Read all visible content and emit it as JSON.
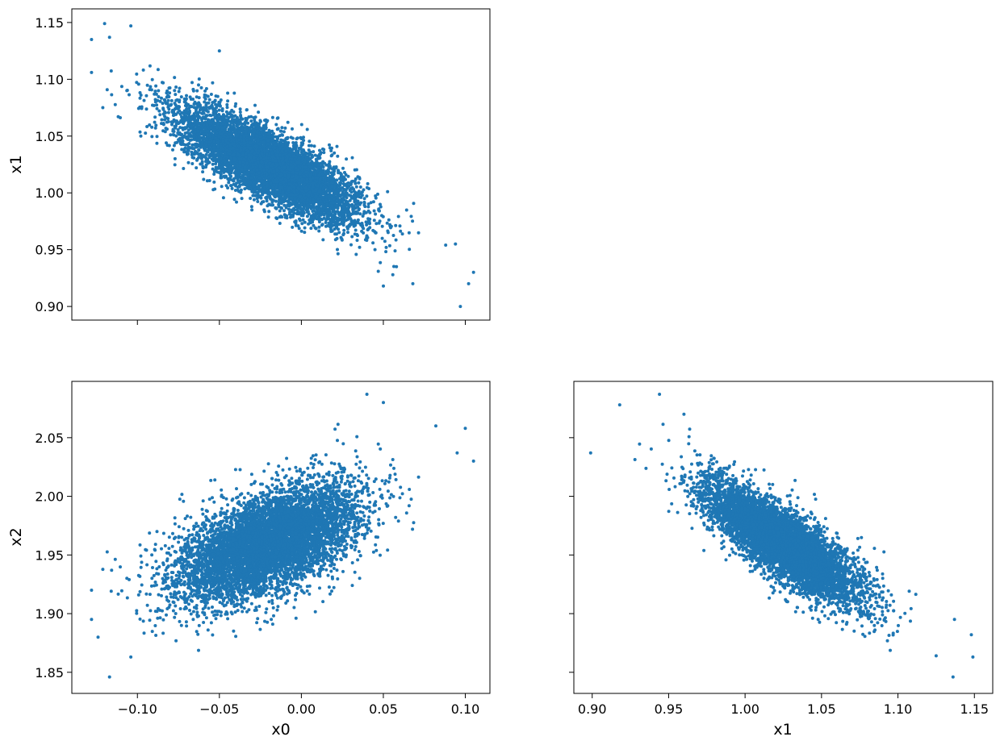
{
  "chart_data": {
    "type": "scatter",
    "layout": "pairwise corner plot (lower triangle)",
    "marker_color": "#1f77b4",
    "grid": false,
    "estimated_distribution": {
      "n_points_per_panel": "dense (~10000)",
      "x0": {
        "mean": -0.02,
        "std": 0.028
      },
      "x1": {
        "mean": 1.025,
        "std": 0.025
      },
      "x2": {
        "mean": 1.96,
        "std": 0.025
      },
      "corr_x0_x1": -0.8,
      "corr_x0_x2": 0.55,
      "corr_x1_x2": -0.82
    },
    "panels": [
      {
        "id": "x0-vs-x1",
        "xvar": "x0",
        "yvar": "x1",
        "xlabel": "",
        "ylabel": "x1",
        "xlim": [
          -0.14,
          0.115
        ],
        "ylim": [
          0.888,
          1.162
        ],
        "xticks": [
          -0.1,
          -0.05,
          0.0,
          0.05,
          0.1
        ],
        "xtick_labels": [],
        "yticks": [
          0.9,
          0.95,
          1.0,
          1.05,
          1.1,
          1.15
        ],
        "ytick_labels": [
          "0.90",
          "0.95",
          "1.00",
          "1.05",
          "1.10",
          "1.15"
        ],
        "outliers": [
          [
            -0.128,
            1.135
          ],
          [
            -0.12,
            1.149
          ],
          [
            -0.104,
            1.147
          ],
          [
            -0.117,
            1.137
          ],
          [
            -0.128,
            1.106
          ],
          [
            -0.05,
            1.125
          ],
          [
            0.068,
            0.92
          ],
          [
            0.088,
            0.954
          ],
          [
            0.094,
            0.955
          ],
          [
            0.097,
            0.9
          ],
          [
            0.105,
            0.93
          ],
          [
            0.102,
            0.92
          ],
          [
            0.058,
            0.935
          ],
          [
            0.05,
            0.918
          ]
        ]
      },
      {
        "id": "x0-vs-x2",
        "xvar": "x0",
        "yvar": "x2",
        "xlabel": "x0",
        "ylabel": "x2",
        "xlim": [
          -0.14,
          0.115
        ],
        "ylim": [
          1.832,
          2.098
        ],
        "xticks": [
          -0.1,
          -0.05,
          0.0,
          0.05,
          0.1
        ],
        "xtick_labels": [
          "−0.10",
          "−0.05",
          "0.00",
          "0.05",
          "0.10"
        ],
        "yticks": [
          1.85,
          1.9,
          1.95,
          2.0,
          2.05
        ],
        "ytick_labels": [
          "1.85",
          "1.90",
          "1.95",
          "2.00",
          "2.05"
        ],
        "outliers": [
          [
            -0.117,
            1.846
          ],
          [
            -0.128,
            1.92
          ],
          [
            -0.128,
            1.895
          ],
          [
            -0.124,
            1.88
          ],
          [
            -0.104,
            1.863
          ],
          [
            0.1,
            2.058
          ],
          [
            0.105,
            2.03
          ],
          [
            0.04,
            2.087
          ],
          [
            0.05,
            2.08
          ],
          [
            0.095,
            2.037
          ],
          [
            0.082,
            2.06
          ]
        ]
      },
      {
        "id": "x1-vs-x2",
        "xvar": "x1",
        "yvar": "x2",
        "xlabel": "x1",
        "ylabel": "",
        "xlim": [
          0.888,
          1.162
        ],
        "ylim": [
          1.832,
          2.098
        ],
        "xticks": [
          0.9,
          0.95,
          1.0,
          1.05,
          1.1,
          1.15
        ],
        "xtick_labels": [
          "0.90",
          "0.95",
          "1.00",
          "1.05",
          "1.10",
          "1.15"
        ],
        "yticks": [
          1.85,
          1.9,
          1.95,
          2.0,
          2.05
        ],
        "ytick_labels": [],
        "outliers": [
          [
            0.899,
            2.037
          ],
          [
            0.918,
            2.078
          ],
          [
            0.944,
            2.087
          ],
          [
            1.136,
            1.846
          ],
          [
            1.149,
            1.863
          ],
          [
            1.148,
            1.882
          ],
          [
            1.137,
            1.895
          ],
          [
            0.96,
            2.07
          ],
          [
            1.125,
            1.864
          ]
        ]
      }
    ]
  }
}
